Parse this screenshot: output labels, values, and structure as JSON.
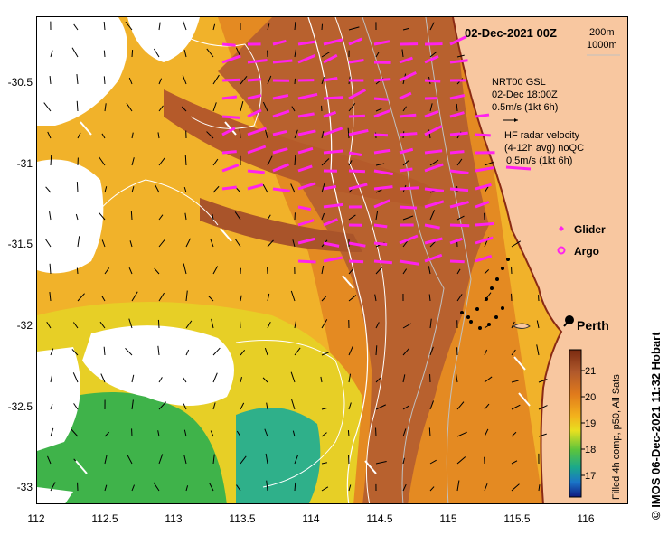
{
  "title": "02-Dec-2021 00Z",
  "contours": {
    "c200": "200m",
    "c1000": "1000m"
  },
  "vector_legend": {
    "nrt_line1": "NRT00 GSL",
    "nrt_line2": "02-Dec 18:00Z",
    "nrt_line3": "0.5m/s (1kt 6h)",
    "hf_line1": "HF radar velocity",
    "hf_line2": "(4-12h avg) noQC",
    "hf_line3": "0.5m/s (1kt 6h)"
  },
  "symbols": {
    "glider": "Glider",
    "argo": "Argo"
  },
  "city": "Perth",
  "colorbar": {
    "ticks": [
      "21",
      "20",
      "19",
      "18",
      "17"
    ],
    "label": "Filled 4h comp, p50, All Sats"
  },
  "credit": "© IMOS 06-Dec-2021 11:32 Hobart",
  "axes": {
    "x_ticks": [
      "112",
      "112.5",
      "113",
      "113.5",
      "114",
      "114.5",
      "115",
      "115.5",
      "116"
    ],
    "y_ticks": [
      "-30.5",
      "-31",
      "-31.5",
      "-32",
      "-32.5",
      "-33"
    ]
  },
  "colors": {
    "land": "#f8c7a0",
    "hf_vectors": "#ff22ee",
    "warm": "#b0592c",
    "cool": "#3db04a"
  }
}
